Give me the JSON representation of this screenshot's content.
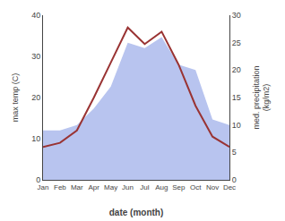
{
  "chart_data": {
    "type": "line",
    "categories": [
      "Jan",
      "Feb",
      "Mar",
      "Apr",
      "May",
      "Jun",
      "Jul",
      "Aug",
      "Sep",
      "Oct",
      "Nov",
      "Dec"
    ],
    "xlabel": "date (month)",
    "ylabel": "max temp (C)",
    "y2label": "med. precipitation\n(kg/m2)",
    "ylim": [
      0,
      40
    ],
    "yticks": [
      0,
      10,
      20,
      30,
      40
    ],
    "y2lim": [
      0,
      30
    ],
    "y2ticks": [
      0,
      5,
      10,
      15,
      20,
      25,
      30
    ],
    "grid": false,
    "series": [
      {
        "type": "area",
        "axis": "y2",
        "color": "#b8c4ef",
        "values": [
          9.0,
          9.0,
          10.0,
          13.0,
          17.0,
          25.0,
          24.0,
          26.0,
          21.0,
          20.0,
          11.0,
          10.0
        ]
      },
      {
        "type": "line",
        "color": "#993333",
        "values": [
          8.0,
          9.0,
          12.0,
          20.0,
          28.5,
          37.0,
          33.0,
          36.0,
          28.0,
          18.0,
          10.5,
          8.0
        ]
      }
    ]
  }
}
